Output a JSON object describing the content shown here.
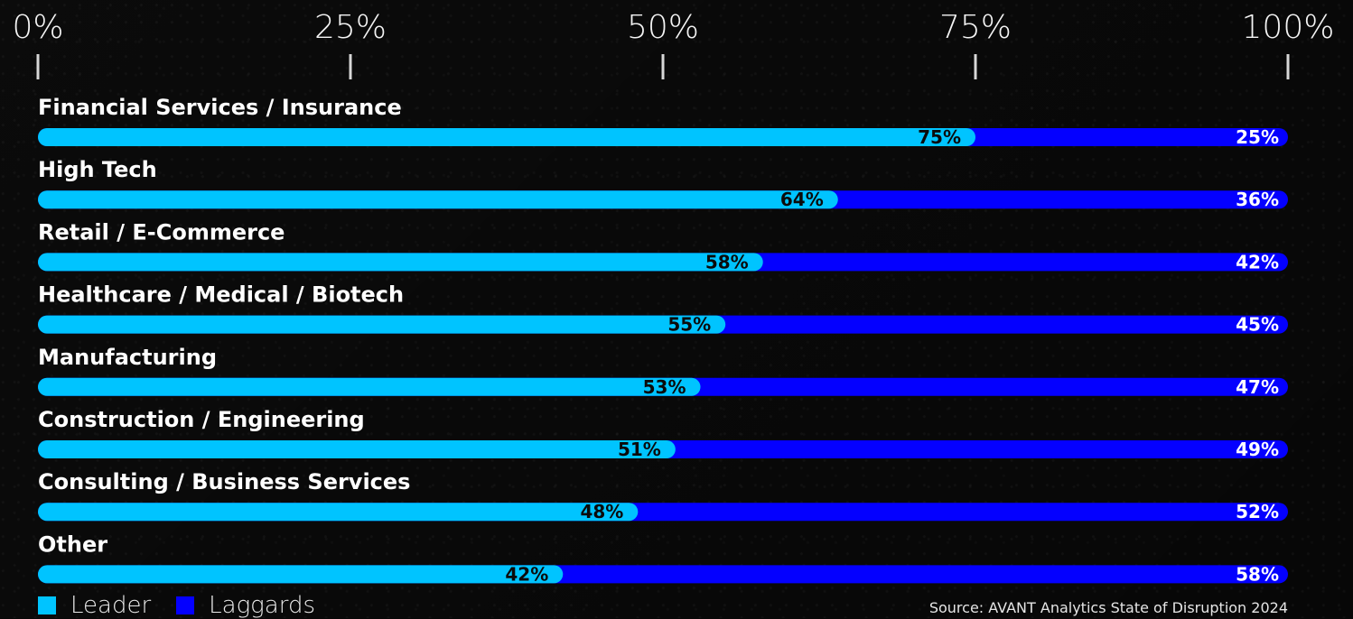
{
  "chart_data": {
    "type": "bar",
    "orientation": "horizontal",
    "stacked": true,
    "categories": [
      "Financial Services / Insurance",
      "High Tech",
      "Retail / E-Commerce",
      "Healthcare / Medical / Biotech",
      "Manufacturing",
      "Construction / Engineering",
      "Consulting / Business Services",
      "Other"
    ],
    "series": [
      {
        "name": "Leader",
        "color": "#00c4ff",
        "values": [
          75,
          64,
          58,
          55,
          53,
          51,
          48,
          42
        ],
        "labels": [
          "75%",
          "64%",
          "58%",
          "55%",
          "53%",
          "51%",
          "48%",
          "42%"
        ]
      },
      {
        "name": "Laggards",
        "color": "#0400ff",
        "values": [
          25,
          36,
          42,
          45,
          47,
          49,
          52,
          58
        ],
        "labels": [
          "25%",
          "36%",
          "42%",
          "45%",
          "47%",
          "49%",
          "52%",
          "58%"
        ]
      }
    ],
    "x_ticks": [
      "0%",
      "25%",
      "50%",
      "75%",
      "100%"
    ],
    "xlim": [
      0,
      100
    ],
    "legend_position": "bottom-left",
    "grid": false,
    "source": "Source: AVANT Analytics State of Disruption 2024"
  }
}
